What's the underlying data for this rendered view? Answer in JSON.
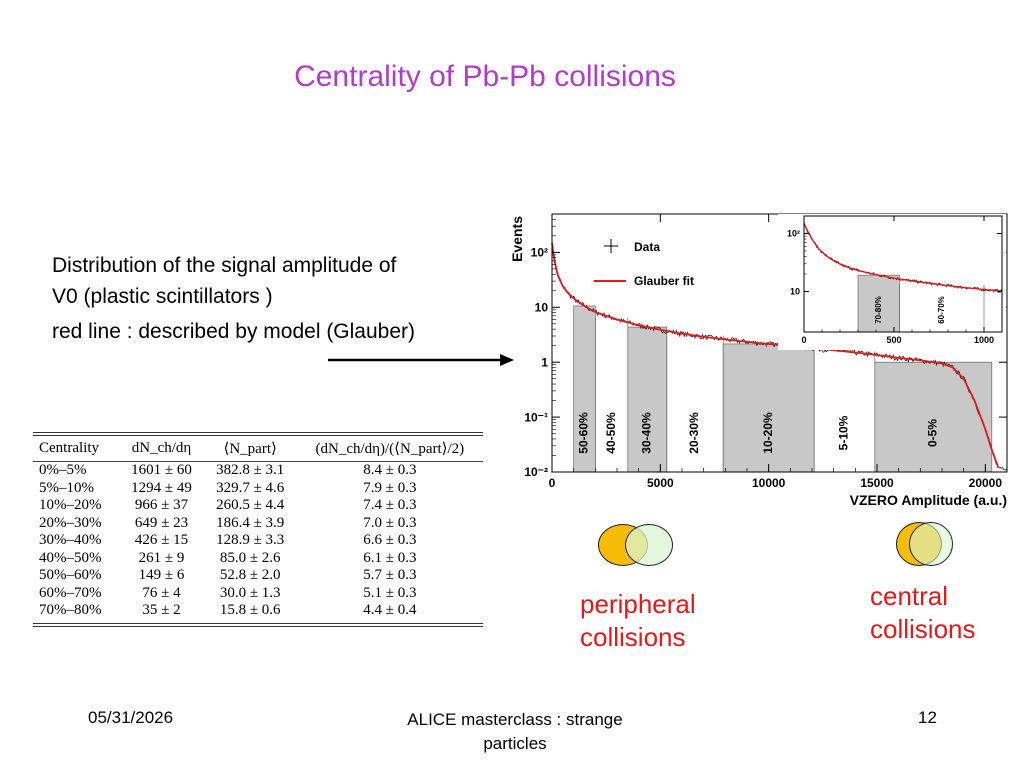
{
  "slide": {
    "title": "Centrality of Pb-Pb collisions",
    "text_line1": "Distribution of the signal amplitude of",
    "text_line2": "V0 (plastic scintillators )",
    "text_line3": "red line : described by model (Glauber)",
    "label_peripheral_1": "peripheral",
    "label_peripheral_2": "collisions",
    "label_central_1": "central",
    "label_central_2": "collisions",
    "footer_date": "05/31/2026",
    "footer_title_1": "ALICE masterclass : strange",
    "footer_title_2": "particles",
    "footer_page": "12"
  },
  "colors": {
    "title": "#b23cc8",
    "fit_line": "#e31a1a",
    "band_fill": "#c8c8c8",
    "circle_yellow": "#f5bd05",
    "circle_green": "#d9f5d2"
  },
  "table": {
    "headers": [
      "Centrality",
      "dN_ch/dη",
      "⟨N_part⟩",
      "(dN_ch/dη)/(⟨N_part⟩/2)"
    ],
    "rows": [
      [
        "0%–5%",
        "1601 ± 60",
        "382.8 ± 3.1",
        "8.4 ± 0.3"
      ],
      [
        "5%–10%",
        "1294 ± 49",
        "329.7 ± 4.6",
        "7.9 ± 0.3"
      ],
      [
        "10%–20%",
        "966 ± 37",
        "260.5 ± 4.4",
        "7.4 ± 0.3"
      ],
      [
        "20%–30%",
        "649 ± 23",
        "186.4 ± 3.9",
        "7.0 ± 0.3"
      ],
      [
        "30%–40%",
        "426 ± 15",
        "128.9 ± 3.3",
        "6.6 ± 0.3"
      ],
      [
        "40%–50%",
        "261 ± 9",
        "85.0 ± 2.6",
        "6.1 ± 0.3"
      ],
      [
        "50%–60%",
        "149 ± 6",
        "52.8 ± 2.0",
        "5.7 ± 0.3"
      ],
      [
        "60%–70%",
        "76 ± 4",
        "30.0 ± 1.3",
        "5.1 ± 0.3"
      ],
      [
        "70%–80%",
        "35 ± 2",
        "15.8 ± 0.6",
        "4.4 ± 0.4"
      ]
    ]
  },
  "chart_data": [
    {
      "type": "line",
      "xlabel": "VZERO Amplitude (a.u.)",
      "ylabel": "Events",
      "xlim": [
        0,
        21000
      ],
      "ylim": [
        0.01,
        500
      ],
      "ylog": true,
      "x_ticks": [
        0,
        5000,
        10000,
        15000,
        20000
      ],
      "y_ticks": [
        0.01,
        0.1,
        1,
        10,
        100
      ],
      "y_tick_labels": [
        "10⁻²",
        "10⁻¹",
        "1",
        "10",
        "10²"
      ],
      "legend": {
        "position": "top-left",
        "entries": [
          "Data",
          "Glauber fit"
        ]
      },
      "series": [
        {
          "name": "Glauber fit",
          "x": [
            0,
            100,
            250,
            500,
            800,
            1200,
            1600,
            2000,
            2500,
            3000,
            3500,
            4000,
            5000,
            6000,
            7000,
            8000,
            9000,
            10000,
            11000,
            12000,
            13000,
            14000,
            15000,
            16000,
            17000,
            18000,
            18500,
            19000,
            19500,
            20000,
            20300,
            20600
          ],
          "y": [
            150,
            75,
            40,
            24,
            17,
            12.5,
            10,
            8.2,
            7.0,
            6.0,
            5.3,
            4.7,
            3.9,
            3.3,
            2.9,
            2.6,
            2.35,
            2.15,
            1.95,
            1.8,
            1.65,
            1.5,
            1.35,
            1.2,
            1.08,
            0.95,
            0.8,
            0.5,
            0.2,
            0.06,
            0.025,
            0.012
          ]
        }
      ],
      "bands": [
        {
          "label": "50-60%",
          "from": 1000,
          "to": 2000,
          "shaded": true
        },
        {
          "label": "40-50%",
          "from": 2000,
          "to": 3500,
          "shaded": false
        },
        {
          "label": "30-40%",
          "from": 3500,
          "to": 5300,
          "shaded": true
        },
        {
          "label": "20-30%",
          "from": 5300,
          "to": 7900,
          "shaded": false
        },
        {
          "label": "10-20%",
          "from": 7900,
          "to": 12100,
          "shaded": true
        },
        {
          "label": "5-10%",
          "from": 12100,
          "to": 14900,
          "shaded": false
        },
        {
          "label": "0-5%",
          "from": 14900,
          "to": 20300,
          "shaded": true
        }
      ]
    },
    {
      "type": "line",
      "xlim": [
        0,
        1100
      ],
      "ylim": [
        2,
        200
      ],
      "ylog": true,
      "x_ticks": [
        0,
        500,
        1000
      ],
      "y_ticks": [
        10,
        100
      ],
      "y_tick_labels": [
        "10",
        "10²"
      ],
      "series": [
        {
          "name": "Glauber fit",
          "x": [
            0,
            20,
            50,
            80,
            120,
            170,
            230,
            300,
            400,
            500,
            600,
            700,
            800,
            900,
            1000,
            1100
          ],
          "y": [
            150,
            110,
            75,
            55,
            42,
            33,
            27,
            23,
            19.5,
            17,
            15.2,
            13.8,
            12.6,
            11.6,
            10.8,
            10.1
          ]
        }
      ],
      "bands": [
        {
          "label": "70-80%",
          "from": 300,
          "to": 530,
          "shaded": true
        },
        {
          "label": "60-70%",
          "from": 530,
          "to": 1000,
          "shaded": false
        }
      ]
    }
  ]
}
